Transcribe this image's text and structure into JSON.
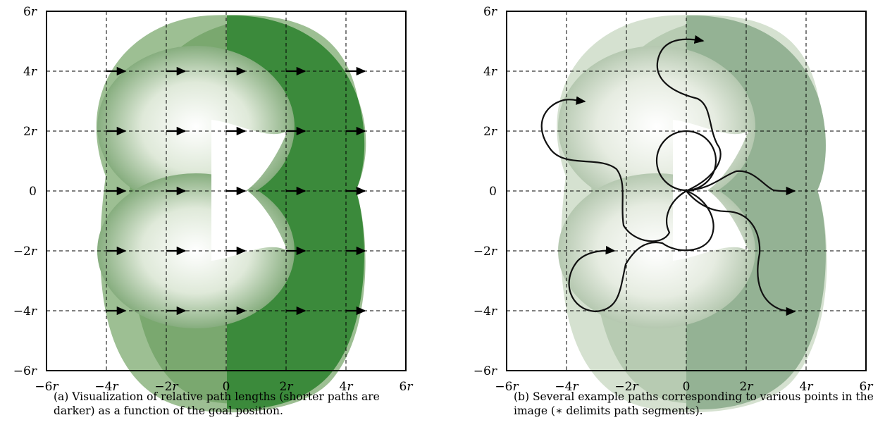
{
  "panels": [
    {
      "id": "a",
      "x_ticks": [
        "−6r",
        "−4r",
        "−2r",
        "0",
        "2r",
        "4r",
        "6r"
      ],
      "y_ticks": [
        "6r",
        "4r",
        "2r",
        "0",
        "−2r",
        "−4r",
        "−6r"
      ],
      "caption": "(a) Visualization of relative path lengths (shorter paths are darker) as a function of the goal position.",
      "colors": {
        "dark": "#3b8a3b",
        "light": "#e3ecdc",
        "white": "#ffffff"
      },
      "arrow_goals": {
        "x": [
          -4,
          -2,
          0,
          2,
          4
        ],
        "y": [
          4,
          2,
          0,
          -2,
          -4
        ]
      }
    },
    {
      "id": "b",
      "x_ticks": [
        "−6r",
        "−4r",
        "−2r",
        "0",
        "2r",
        "4r",
        "6r"
      ],
      "y_ticks": [
        "6r",
        "4r",
        "2r",
        "0",
        "−2r",
        "−4r",
        "−6r"
      ],
      "caption": "(b) Several example paths corresponding to various points in the image (∗ delimits path segments).",
      "colors": {
        "dark": "#94b294",
        "light": "#e9eee5",
        "white": "#ffffff"
      },
      "example_goals": [
        [
          1,
          5
        ],
        [
          -3,
          3
        ],
        [
          3,
          0
        ],
        [
          -2,
          -2
        ],
        [
          3,
          -4
        ]
      ]
    }
  ]
}
